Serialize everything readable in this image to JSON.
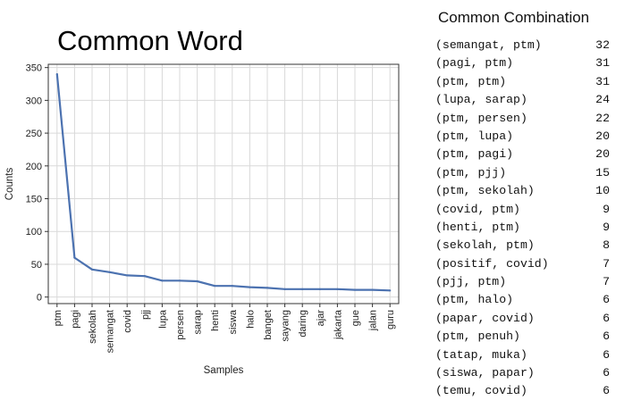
{
  "chart_data": {
    "type": "line",
    "title": "Common Word",
    "xlabel": "Samples",
    "ylabel": "Counts",
    "categories": [
      "ptm",
      "pagi",
      "sekolah",
      "semangat",
      "covid",
      "pjj",
      "lupa",
      "persen",
      "sarap",
      "henti",
      "siswa",
      "halo",
      "banget",
      "sayang",
      "daring",
      "ajar",
      "jakarta",
      "gue",
      "jalan",
      "guru"
    ],
    "values": [
      340,
      60,
      42,
      38,
      33,
      32,
      25,
      25,
      24,
      17,
      17,
      15,
      14,
      12,
      12,
      12,
      12,
      11,
      11,
      10
    ],
    "ylim": [
      -10,
      355
    ],
    "yticks": [
      0,
      50,
      100,
      150,
      200,
      250,
      300,
      350
    ],
    "grid": true,
    "line_color": "#4c72b0"
  },
  "combinations": {
    "title": "Common Combination",
    "rows": [
      {
        "pair": "(semangat, ptm)",
        "count": "32"
      },
      {
        "pair": "(pagi, ptm)",
        "count": "31"
      },
      {
        "pair": "(ptm, ptm)",
        "count": "31"
      },
      {
        "pair": "(lupa, sarap)",
        "count": "24"
      },
      {
        "pair": "(ptm, persen)",
        "count": "22"
      },
      {
        "pair": "(ptm, lupa)",
        "count": "20"
      },
      {
        "pair": "(ptm, pagi)",
        "count": "20"
      },
      {
        "pair": "(ptm, pjj)",
        "count": "15"
      },
      {
        "pair": "(ptm, sekolah)",
        "count": "10"
      },
      {
        "pair": "(covid, ptm)",
        "count": "9"
      },
      {
        "pair": "(henti, ptm)",
        "count": "9"
      },
      {
        "pair": "(sekolah, ptm)",
        "count": "8"
      },
      {
        "pair": "(positif, covid)",
        "count": "7"
      },
      {
        "pair": "(pjj, ptm)",
        "count": "7"
      },
      {
        "pair": "(ptm, halo)",
        "count": "6"
      },
      {
        "pair": "(papar, covid)",
        "count": "6"
      },
      {
        "pair": "(ptm, penuh)",
        "count": "6"
      },
      {
        "pair": "(tatap, muka)",
        "count": "6"
      },
      {
        "pair": "(siswa, papar)",
        "count": "6"
      },
      {
        "pair": "(temu, covid)",
        "count": "6"
      }
    ]
  }
}
